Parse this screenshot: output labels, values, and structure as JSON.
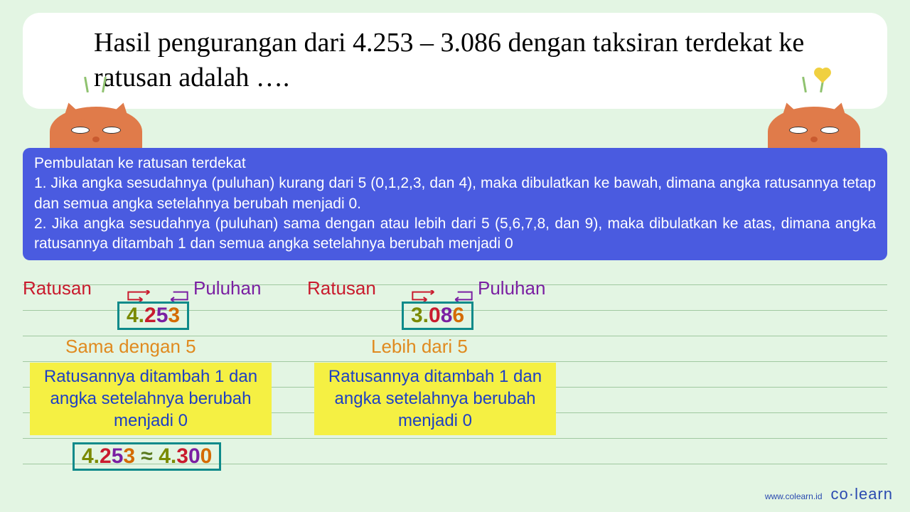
{
  "question": "Hasil pengurangan dari 4.253 – 3.086 dengan taksiran terdekat ke ratusan adalah ….",
  "rules": {
    "title": "Pembulatan ke ratusan terdekat",
    "rule1": "1. Jika angka sesudahnya (puluhan) kurang dari 5 (0,1,2,3, dan 4), maka dibulatkan ke bawah, dimana angka ratusannya tetap dan semua angka setelahnya berubah menjadi 0.",
    "rule2": "2. Jika angka sesudahnya (puluhan) sama dengan atau lebih dari 5 (5,6,7,8, dan 9), maka dibulatkan ke atas, dimana angka ratusannya ditambah 1 dan semua angka setelahnya berubah menjadi 0"
  },
  "labels": {
    "ratusan": "Ratusan",
    "puluhan": "Puluhan"
  },
  "example1": {
    "number": {
      "thousand": "4.",
      "hundred": "2",
      "ten": "5",
      "unit": "3"
    },
    "condition": "Sama dengan 5",
    "rule_text": "Ratusannya ditambah 1 dan angka setelahnya berubah menjadi 0",
    "result_left": {
      "thousand": "4.",
      "hundred": "2",
      "ten": "5",
      "unit": "3"
    },
    "approx": " ≈ ",
    "result_right": {
      "thousand": "4.",
      "hundred": "3",
      "ten": "0",
      "unit": "0"
    }
  },
  "example2": {
    "number": {
      "thousand": "3.",
      "hundred": "0",
      "ten": "8",
      "unit": "6"
    },
    "condition": "Lebih dari 5",
    "rule_text": "Ratusannya ditambah 1 dan angka setelahnya berubah menjadi 0"
  },
  "colors": {
    "background": "#e3f5e3",
    "blue_box": "#4a5be0",
    "ratusan": "#c91b2e",
    "puluhan": "#7a1fa2",
    "thousand": "#7a8a00",
    "unit": "#d46b00",
    "box_border": "#0e8a8a",
    "highlight": "#f5f043",
    "rule_text": "#1e40c4",
    "condition": "#e08a1f",
    "brand": "#2a4ab0"
  },
  "footer": {
    "url": "www.colearn.id",
    "brand": "co·learn"
  },
  "line_spacing": 36,
  "line_count": 8
}
